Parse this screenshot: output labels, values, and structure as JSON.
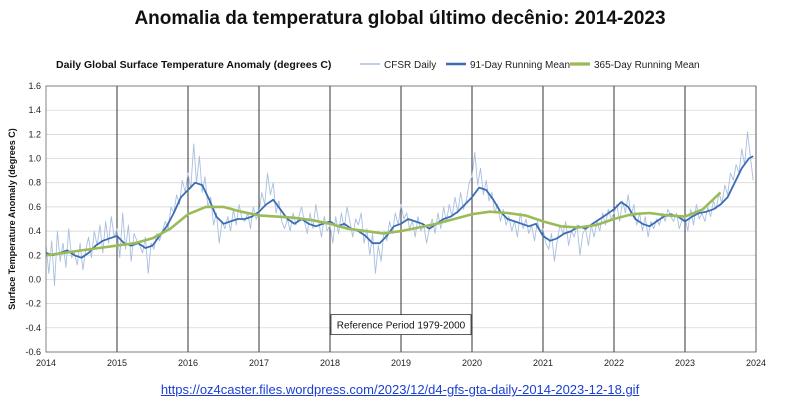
{
  "page": {
    "title": "Anomalia da temperatura global último decênio: 2014-2023",
    "source_url": "https://oz4caster.files.wordpress.com/2023/12/d4-gfs-gta-daily-2014-2023-12-18.gif"
  },
  "chart_data": {
    "type": "line",
    "title": "Daily Global Surface Temperature Anomaly (degrees C)",
    "xlabel": "",
    "ylabel": "Surface Temperature Anomaly (degrees C)",
    "x_ticks": [
      "2014",
      "2015",
      "2016",
      "2017",
      "2018",
      "2019",
      "2020",
      "2021",
      "2022",
      "2023",
      "2024"
    ],
    "xlim": [
      2014,
      2024
    ],
    "ylim": [
      -0.6,
      1.6
    ],
    "y_ticks": [
      -0.6,
      -0.4,
      -0.2,
      0.0,
      0.2,
      0.4,
      0.6,
      0.8,
      1.0,
      1.2,
      1.4,
      1.6
    ],
    "y_tick_labels": [
      "-0.6",
      "-0.4",
      "-0.2",
      "0.0",
      "0.2",
      "0.4",
      "0.6",
      "0.8",
      "1.0",
      "1.2",
      "1.4",
      "1.6"
    ],
    "grid": true,
    "legend_position": "top-right",
    "annotation": "Reference Period 1979-2000",
    "colors": {
      "daily": "#a9bfe0",
      "running_91": "#3a6db5",
      "running_365": "#9bbb59",
      "grid_major": "#333333",
      "grid_minor": "#cfcfcf"
    },
    "series": [
      {
        "name": "CFSR Daily",
        "x": [
          2014.0,
          2014.04,
          2014.08,
          2014.12,
          2014.16,
          2014.2,
          2014.24,
          2014.28,
          2014.32,
          2014.36,
          2014.4,
          2014.44,
          2014.48,
          2014.52,
          2014.56,
          2014.6,
          2014.64,
          2014.68,
          2014.72,
          2014.76,
          2014.8,
          2014.84,
          2014.88,
          2014.92,
          2014.96,
          2015.0,
          2015.04,
          2015.08,
          2015.12,
          2015.16,
          2015.2,
          2015.24,
          2015.28,
          2015.32,
          2015.36,
          2015.4,
          2015.44,
          2015.48,
          2015.52,
          2015.56,
          2015.6,
          2015.64,
          2015.68,
          2015.72,
          2015.76,
          2015.8,
          2015.84,
          2015.88,
          2015.92,
          2015.96,
          2016.0,
          2016.04,
          2016.08,
          2016.12,
          2016.16,
          2016.2,
          2016.24,
          2016.28,
          2016.32,
          2016.36,
          2016.4,
          2016.44,
          2016.48,
          2016.52,
          2016.56,
          2016.6,
          2016.64,
          2016.68,
          2016.72,
          2016.76,
          2016.8,
          2016.84,
          2016.88,
          2016.92,
          2016.96,
          2017.0,
          2017.04,
          2017.08,
          2017.12,
          2017.16,
          2017.2,
          2017.24,
          2017.28,
          2017.32,
          2017.36,
          2017.4,
          2017.44,
          2017.48,
          2017.52,
          2017.56,
          2017.6,
          2017.64,
          2017.68,
          2017.72,
          2017.76,
          2017.8,
          2017.84,
          2017.88,
          2017.92,
          2017.96,
          2018.0,
          2018.04,
          2018.08,
          2018.12,
          2018.16,
          2018.2,
          2018.24,
          2018.28,
          2018.32,
          2018.36,
          2018.4,
          2018.44,
          2018.48,
          2018.52,
          2018.56,
          2018.6,
          2018.64,
          2018.68,
          2018.72,
          2018.76,
          2018.8,
          2018.84,
          2018.88,
          2018.92,
          2018.96,
          2019.0,
          2019.04,
          2019.08,
          2019.12,
          2019.16,
          2019.2,
          2019.24,
          2019.28,
          2019.32,
          2019.36,
          2019.4,
          2019.44,
          2019.48,
          2019.52,
          2019.56,
          2019.6,
          2019.64,
          2019.68,
          2019.72,
          2019.76,
          2019.8,
          2019.84,
          2019.88,
          2019.92,
          2019.96,
          2020.0,
          2020.04,
          2020.08,
          2020.12,
          2020.16,
          2020.2,
          2020.24,
          2020.28,
          2020.32,
          2020.36,
          2020.4,
          2020.44,
          2020.48,
          2020.52,
          2020.56,
          2020.6,
          2020.64,
          2020.68,
          2020.72,
          2020.76,
          2020.8,
          2020.84,
          2020.88,
          2020.92,
          2020.96,
          2021.0,
          2021.04,
          2021.08,
          2021.12,
          2021.16,
          2021.2,
          2021.24,
          2021.28,
          2021.32,
          2021.36,
          2021.4,
          2021.44,
          2021.48,
          2021.52,
          2021.56,
          2021.6,
          2021.64,
          2021.68,
          2021.72,
          2021.76,
          2021.8,
          2021.84,
          2021.88,
          2021.92,
          2021.96,
          2022.0,
          2022.04,
          2022.08,
          2022.12,
          2022.16,
          2022.2,
          2022.24,
          2022.28,
          2022.32,
          2022.36,
          2022.4,
          2022.44,
          2022.48,
          2022.52,
          2022.56,
          2022.6,
          2022.64,
          2022.68,
          2022.72,
          2022.76,
          2022.8,
          2022.84,
          2022.88,
          2022.92,
          2022.96,
          2023.0,
          2023.04,
          2023.08,
          2023.12,
          2023.16,
          2023.2,
          2023.24,
          2023.28,
          2023.32,
          2023.36,
          2023.4,
          2023.44,
          2023.48,
          2023.52,
          2023.56,
          2023.6,
          2023.64,
          2023.68,
          2023.72,
          2023.76,
          2023.8,
          2023.84,
          2023.88,
          2023.92,
          2023.96
        ],
        "values": [
          0.28,
          0.05,
          0.32,
          -0.05,
          0.4,
          0.15,
          0.3,
          0.1,
          0.42,
          0.18,
          0.22,
          0.12,
          0.3,
          0.08,
          0.25,
          0.35,
          0.18,
          0.4,
          0.28,
          0.45,
          0.22,
          0.48,
          0.3,
          0.52,
          0.35,
          0.42,
          0.18,
          0.55,
          0.25,
          0.45,
          0.15,
          0.38,
          0.32,
          0.28,
          0.22,
          0.35,
          0.05,
          0.3,
          0.25,
          0.38,
          0.32,
          0.4,
          0.48,
          0.42,
          0.6,
          0.55,
          0.7,
          0.62,
          0.82,
          0.72,
          0.88,
          0.75,
          1.12,
          0.8,
          1.02,
          0.72,
          0.85,
          0.6,
          0.68,
          0.45,
          0.55,
          0.3,
          0.48,
          0.42,
          0.52,
          0.4,
          0.58,
          0.45,
          0.62,
          0.5,
          0.48,
          0.55,
          0.42,
          0.6,
          0.5,
          0.55,
          0.72,
          0.62,
          0.88,
          0.7,
          0.8,
          0.55,
          0.65,
          0.48,
          0.42,
          0.5,
          0.4,
          0.55,
          0.45,
          0.52,
          0.6,
          0.48,
          0.38,
          0.55,
          0.42,
          0.62,
          0.48,
          0.35,
          0.52,
          0.4,
          0.45,
          0.3,
          0.52,
          0.38,
          0.55,
          0.42,
          0.6,
          0.48,
          0.35,
          0.5,
          0.45,
          0.55,
          0.3,
          0.42,
          0.2,
          0.38,
          0.05,
          0.28,
          0.15,
          0.4,
          0.32,
          0.48,
          0.38,
          0.55,
          0.45,
          0.62,
          0.5,
          0.55,
          0.42,
          0.48,
          0.35,
          0.52,
          0.4,
          0.45,
          0.3,
          0.42,
          0.5,
          0.38,
          0.55,
          0.42,
          0.6,
          0.48,
          0.62,
          0.52,
          0.68,
          0.55,
          0.72,
          0.58,
          0.65,
          0.8,
          0.85,
          1.05,
          0.78,
          0.92,
          0.7,
          0.82,
          0.65,
          0.72,
          0.55,
          0.62,
          0.48,
          0.58,
          0.45,
          0.52,
          0.4,
          0.48,
          0.35,
          0.55,
          0.42,
          0.5,
          0.38,
          0.45,
          0.32,
          0.48,
          0.4,
          0.42,
          0.3,
          0.25,
          0.38,
          0.15,
          0.32,
          0.45,
          0.38,
          0.48,
          0.28,
          0.4,
          0.35,
          0.45,
          0.2,
          0.38,
          0.42,
          0.28,
          0.45,
          0.35,
          0.48,
          0.4,
          0.55,
          0.45,
          0.58,
          0.5,
          0.55,
          0.62,
          0.48,
          0.65,
          0.55,
          0.7,
          0.52,
          0.62,
          0.45,
          0.55,
          0.4,
          0.52,
          0.35,
          0.48,
          0.42,
          0.5,
          0.45,
          0.55,
          0.48,
          0.58,
          0.52,
          0.48,
          0.55,
          0.42,
          0.5,
          0.52,
          0.4,
          0.58,
          0.45,
          0.62,
          0.5,
          0.55,
          0.48,
          0.6,
          0.52,
          0.65,
          0.58,
          0.72,
          0.62,
          0.78,
          0.7,
          0.88,
          0.82,
          0.95,
          0.88,
          1.08,
          0.95,
          1.22,
          1.02,
          0.82
        ]
      },
      {
        "name": "91-Day Running Mean",
        "x": [
          2014.0,
          2014.1,
          2014.2,
          2014.3,
          2014.4,
          2014.5,
          2014.6,
          2014.7,
          2014.8,
          2014.9,
          2015.0,
          2015.1,
          2015.2,
          2015.3,
          2015.4,
          2015.5,
          2015.6,
          2015.7,
          2015.8,
          2015.9,
          2016.0,
          2016.1,
          2016.2,
          2016.3,
          2016.4,
          2016.5,
          2016.6,
          2016.7,
          2016.8,
          2016.9,
          2017.0,
          2017.1,
          2017.2,
          2017.3,
          2017.4,
          2017.5,
          2017.6,
          2017.7,
          2017.8,
          2017.9,
          2018.0,
          2018.1,
          2018.2,
          2018.3,
          2018.4,
          2018.5,
          2018.6,
          2018.7,
          2018.8,
          2018.9,
          2019.0,
          2019.1,
          2019.2,
          2019.3,
          2019.4,
          2019.5,
          2019.6,
          2019.7,
          2019.8,
          2019.9,
          2020.0,
          2020.1,
          2020.2,
          2020.3,
          2020.4,
          2020.5,
          2020.6,
          2020.7,
          2020.8,
          2020.9,
          2021.0,
          2021.1,
          2021.2,
          2021.3,
          2021.4,
          2021.5,
          2021.6,
          2021.7,
          2021.8,
          2021.9,
          2022.0,
          2022.1,
          2022.2,
          2022.3,
          2022.4,
          2022.5,
          2022.6,
          2022.7,
          2022.8,
          2022.9,
          2023.0,
          2023.1,
          2023.2,
          2023.3,
          2023.4,
          2023.5,
          2023.6,
          2023.7,
          2023.8,
          2023.9,
          2023.96
        ],
        "values": [
          0.22,
          0.2,
          0.22,
          0.24,
          0.2,
          0.18,
          0.22,
          0.28,
          0.32,
          0.34,
          0.36,
          0.3,
          0.28,
          0.3,
          0.26,
          0.28,
          0.36,
          0.44,
          0.55,
          0.68,
          0.74,
          0.8,
          0.78,
          0.66,
          0.52,
          0.46,
          0.48,
          0.5,
          0.5,
          0.52,
          0.56,
          0.62,
          0.66,
          0.58,
          0.5,
          0.46,
          0.5,
          0.46,
          0.44,
          0.46,
          0.48,
          0.44,
          0.46,
          0.42,
          0.4,
          0.36,
          0.3,
          0.3,
          0.36,
          0.44,
          0.46,
          0.5,
          0.48,
          0.46,
          0.42,
          0.46,
          0.5,
          0.52,
          0.56,
          0.62,
          0.68,
          0.76,
          0.74,
          0.66,
          0.56,
          0.5,
          0.48,
          0.46,
          0.44,
          0.46,
          0.36,
          0.32,
          0.34,
          0.38,
          0.4,
          0.44,
          0.42,
          0.46,
          0.5,
          0.54,
          0.58,
          0.64,
          0.6,
          0.5,
          0.46,
          0.44,
          0.48,
          0.52,
          0.54,
          0.52,
          0.48,
          0.52,
          0.55,
          0.56,
          0.58,
          0.62,
          0.68,
          0.8,
          0.92,
          1.0,
          1.02
        ]
      },
      {
        "name": "365-Day Running Mean",
        "x": [
          2014.0,
          2014.25,
          2014.5,
          2014.75,
          2015.0,
          2015.25,
          2015.5,
          2015.75,
          2016.0,
          2016.25,
          2016.5,
          2016.75,
          2017.0,
          2017.25,
          2017.5,
          2017.75,
          2018.0,
          2018.25,
          2018.5,
          2018.75,
          2019.0,
          2019.25,
          2019.5,
          2019.75,
          2020.0,
          2020.25,
          2020.5,
          2020.75,
          2021.0,
          2021.25,
          2021.5,
          2021.75,
          2022.0,
          2022.25,
          2022.5,
          2022.75,
          2023.0,
          2023.25,
          2023.5
        ],
        "values": [
          0.2,
          0.22,
          0.24,
          0.26,
          0.28,
          0.3,
          0.34,
          0.42,
          0.54,
          0.6,
          0.6,
          0.56,
          0.53,
          0.52,
          0.51,
          0.49,
          0.46,
          0.42,
          0.4,
          0.38,
          0.4,
          0.43,
          0.46,
          0.5,
          0.54,
          0.56,
          0.55,
          0.53,
          0.48,
          0.44,
          0.43,
          0.45,
          0.5,
          0.54,
          0.55,
          0.53,
          0.52,
          0.58,
          0.72
        ]
      }
    ]
  }
}
